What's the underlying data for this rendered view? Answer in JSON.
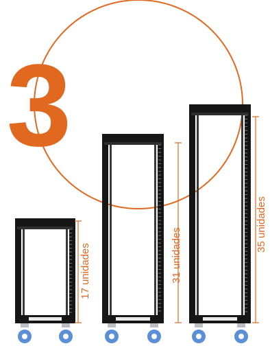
{
  "headline_number": "3",
  "colors": {
    "accent": "#e0691f",
    "frame": "#161616",
    "caster_blue": "#5b8fd6",
    "caster_gray": "#b9bfc6"
  },
  "racks": [
    {
      "name": "rack-small",
      "label": "17 unidades",
      "units": 17
    },
    {
      "name": "rack-medium",
      "label": "31 unidades",
      "units": 31
    },
    {
      "name": "rack-large",
      "label": "35 unidades",
      "units": 35
    }
  ]
}
